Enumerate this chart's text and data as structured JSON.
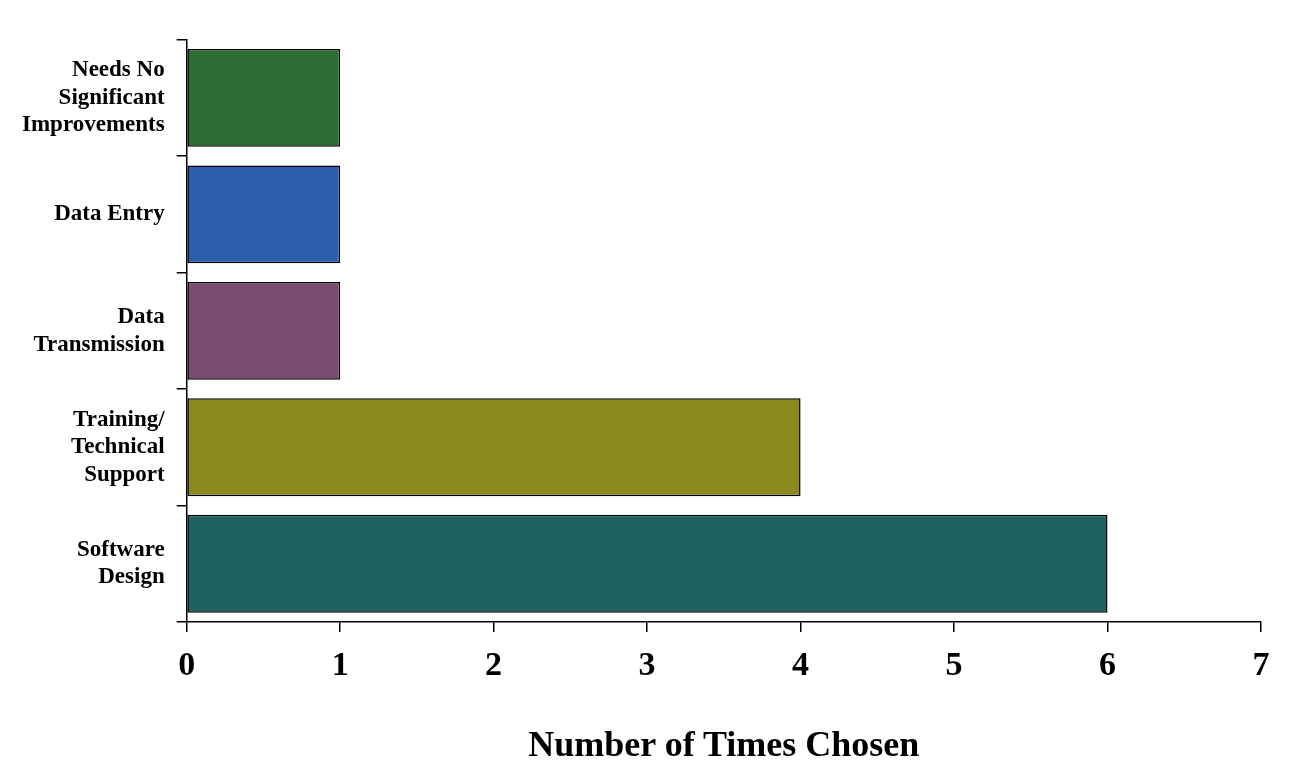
{
  "chart_data": {
    "type": "bar",
    "orientation": "horizontal",
    "xlabel": "Number of Times Chosen",
    "categories": [
      "Needs No Significant Improvements",
      "Data Entry",
      "Data Transmission",
      "Training/ Technical Support",
      "Software Design"
    ],
    "values": [
      1,
      1,
      1,
      4,
      6
    ],
    "colors": [
      "#2e6e35",
      "#2b5fae",
      "#7a4c72",
      "#8c8a1e",
      "#1f6060"
    ],
    "xlim": [
      0,
      7
    ],
    "xticks": [
      0,
      1,
      2,
      3,
      4,
      5,
      6,
      7
    ]
  }
}
